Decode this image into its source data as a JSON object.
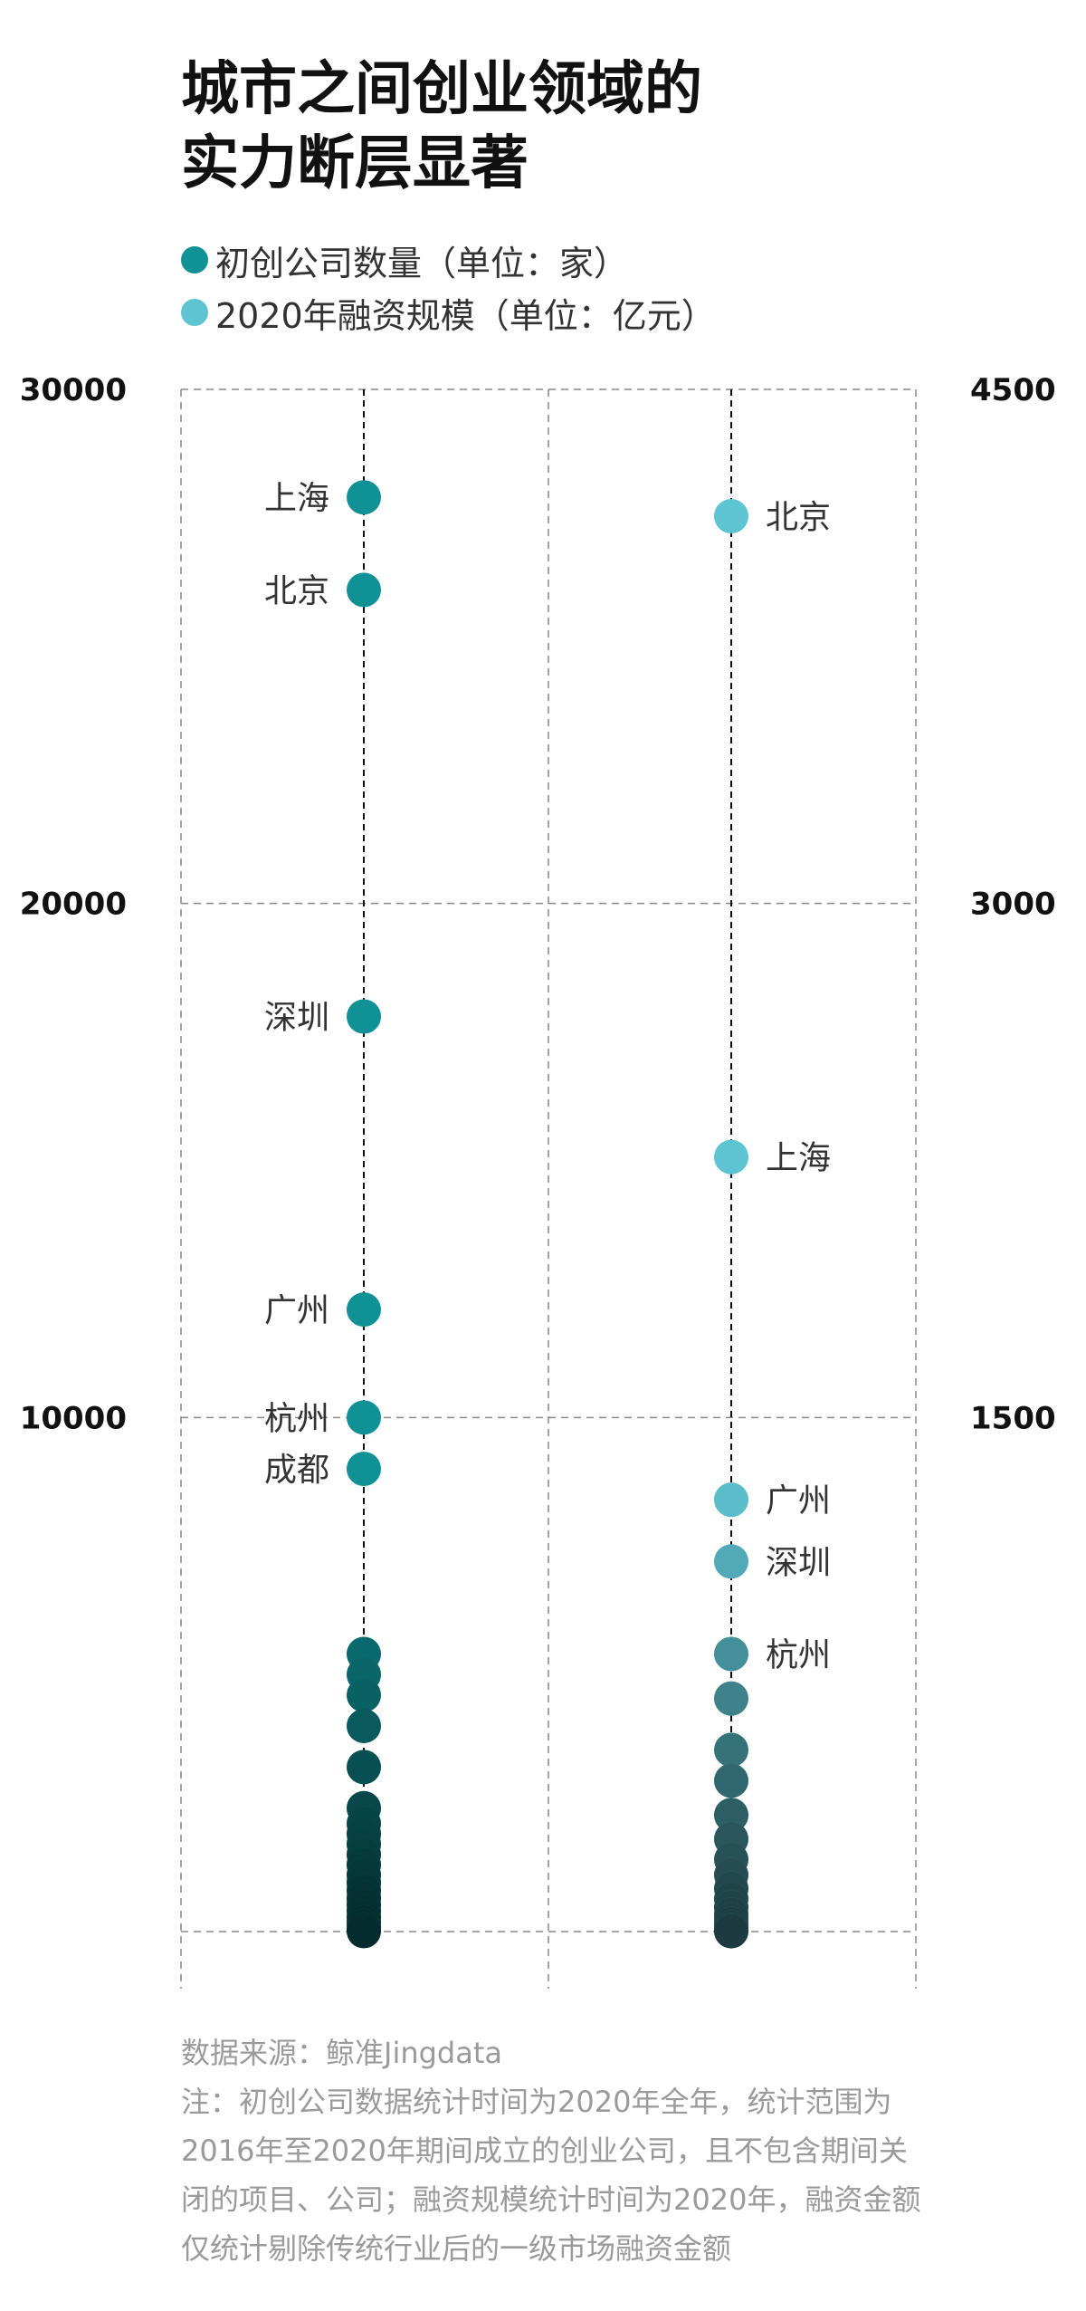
{
  "title": {
    "line1": "城市之间创业领域的",
    "line2": "实力断层显著"
  },
  "legend": [
    {
      "label": "初创公司数量（单位：家）",
      "color": "#0f9196"
    },
    {
      "label": "2020年融资规模（单位：亿元）",
      "color": "#5ec4d2"
    }
  ],
  "chart_data": {
    "type": "scatter",
    "left_axis": {
      "ticks": [
        "30000",
        "20000",
        "10000"
      ],
      "range": [
        0,
        30000
      ]
    },
    "right_axis": {
      "ticks": [
        "4500",
        "3000",
        "1500"
      ],
      "range": [
        0,
        4500
      ]
    },
    "series": [
      {
        "name": "初创公司数量（单位：家）",
        "axis": "left",
        "color": "#0f9196",
        "points": [
          {
            "label": "上海",
            "value": 27900
          },
          {
            "label": "北京",
            "value": 26100
          },
          {
            "label": "深圳",
            "value": 17800
          },
          {
            "label": "广州",
            "value": 12100
          },
          {
            "label": "杭州",
            "value": 10000
          },
          {
            "label": "成都",
            "value": 9000
          },
          {
            "label": "",
            "value": 5400
          },
          {
            "label": "",
            "value": 5000
          },
          {
            "label": "",
            "value": 4600
          },
          {
            "label": "",
            "value": 4000
          },
          {
            "label": "",
            "value": 3200
          },
          {
            "label": "",
            "value": 2400
          },
          {
            "label": "",
            "value": 2100
          },
          {
            "label": "",
            "value": 1900
          },
          {
            "label": "",
            "value": 1700
          },
          {
            "label": "",
            "value": 1500
          },
          {
            "label": "",
            "value": 1300
          },
          {
            "label": "",
            "value": 1100
          },
          {
            "label": "",
            "value": 950
          },
          {
            "label": "",
            "value": 800
          },
          {
            "label": "",
            "value": 650
          },
          {
            "label": "",
            "value": 520
          },
          {
            "label": "",
            "value": 400
          },
          {
            "label": "",
            "value": 280
          },
          {
            "label": "",
            "value": 180
          },
          {
            "label": "",
            "value": 100
          },
          {
            "label": "",
            "value": 40
          },
          {
            "label": "",
            "value": 10
          }
        ]
      },
      {
        "name": "2020年融资规模（单位：亿元）",
        "axis": "right",
        "color": "#5ec4d2",
        "points": [
          {
            "label": "北京",
            "value": 4130
          },
          {
            "label": "上海",
            "value": 2260
          },
          {
            "label": "广州",
            "value": 1260
          },
          {
            "label": "深圳",
            "value": 1080
          },
          {
            "label": "杭州",
            "value": 810
          },
          {
            "label": "",
            "value": 680
          },
          {
            "label": "",
            "value": 530
          },
          {
            "label": "",
            "value": 440
          },
          {
            "label": "",
            "value": 340
          },
          {
            "label": "",
            "value": 270
          },
          {
            "label": "",
            "value": 210
          },
          {
            "label": "",
            "value": 165
          },
          {
            "label": "",
            "value": 125
          },
          {
            "label": "",
            "value": 95
          },
          {
            "label": "",
            "value": 70
          },
          {
            "label": "",
            "value": 50
          },
          {
            "label": "",
            "value": 35
          },
          {
            "label": "",
            "value": 22
          },
          {
            "label": "",
            "value": 12
          },
          {
            "label": "",
            "value": 5
          },
          {
            "label": "",
            "value": 1
          }
        ]
      }
    ],
    "grid": true
  },
  "notes": {
    "source": "数据来源：鲸准Jingdata",
    "note": "注：初创公司数据统计时间为2020年全年，统计范围为2016年至2020年期间成立的创业公司，且不包含期间关闭的项目、公司；融资规模统计时间为2020年，融资金额仅统计剔除传统行业后的一级市场融资金额"
  }
}
